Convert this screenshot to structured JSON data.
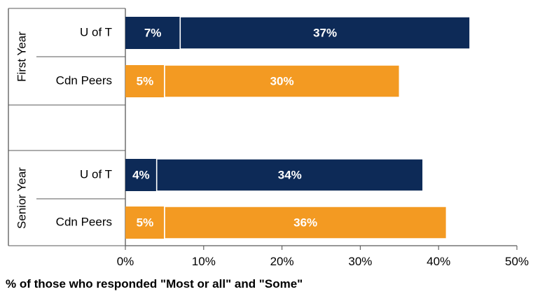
{
  "chart_data": {
    "type": "bar",
    "orientation": "horizontal",
    "stacked": true,
    "groups": [
      {
        "label": "First Year",
        "rows": [
          {
            "label": "U of T",
            "color": "#0d2a57",
            "segments": [
              7,
              37
            ],
            "segment_labels": [
              "7%",
              "37%"
            ]
          },
          {
            "label": "Cdn Peers",
            "color": "#f39a22",
            "segments": [
              5,
              30
            ],
            "segment_labels": [
              "5%",
              "30%"
            ]
          }
        ]
      },
      {
        "label": "Senior Year",
        "rows": [
          {
            "label": "U of T",
            "color": "#0d2a57",
            "segments": [
              4,
              34
            ],
            "segment_labels": [
              "4%",
              "34%"
            ]
          },
          {
            "label": "Cdn Peers",
            "color": "#f39a22",
            "segments": [
              5,
              36
            ],
            "segment_labels": [
              "5%",
              "36%"
            ]
          }
        ]
      }
    ],
    "xlim": [
      0,
      50
    ],
    "xticks": [
      {
        "value": 0,
        "label": "0%"
      },
      {
        "value": 10,
        "label": "10%"
      },
      {
        "value": 20,
        "label": "20%"
      },
      {
        "value": 30,
        "label": "30%"
      },
      {
        "value": 40,
        "label": "40%"
      },
      {
        "value": 50,
        "label": "50%"
      }
    ],
    "xlabel": "% of those who responded \"Most or all\" and \"Some\"",
    "grid": false,
    "legend": "none"
  }
}
